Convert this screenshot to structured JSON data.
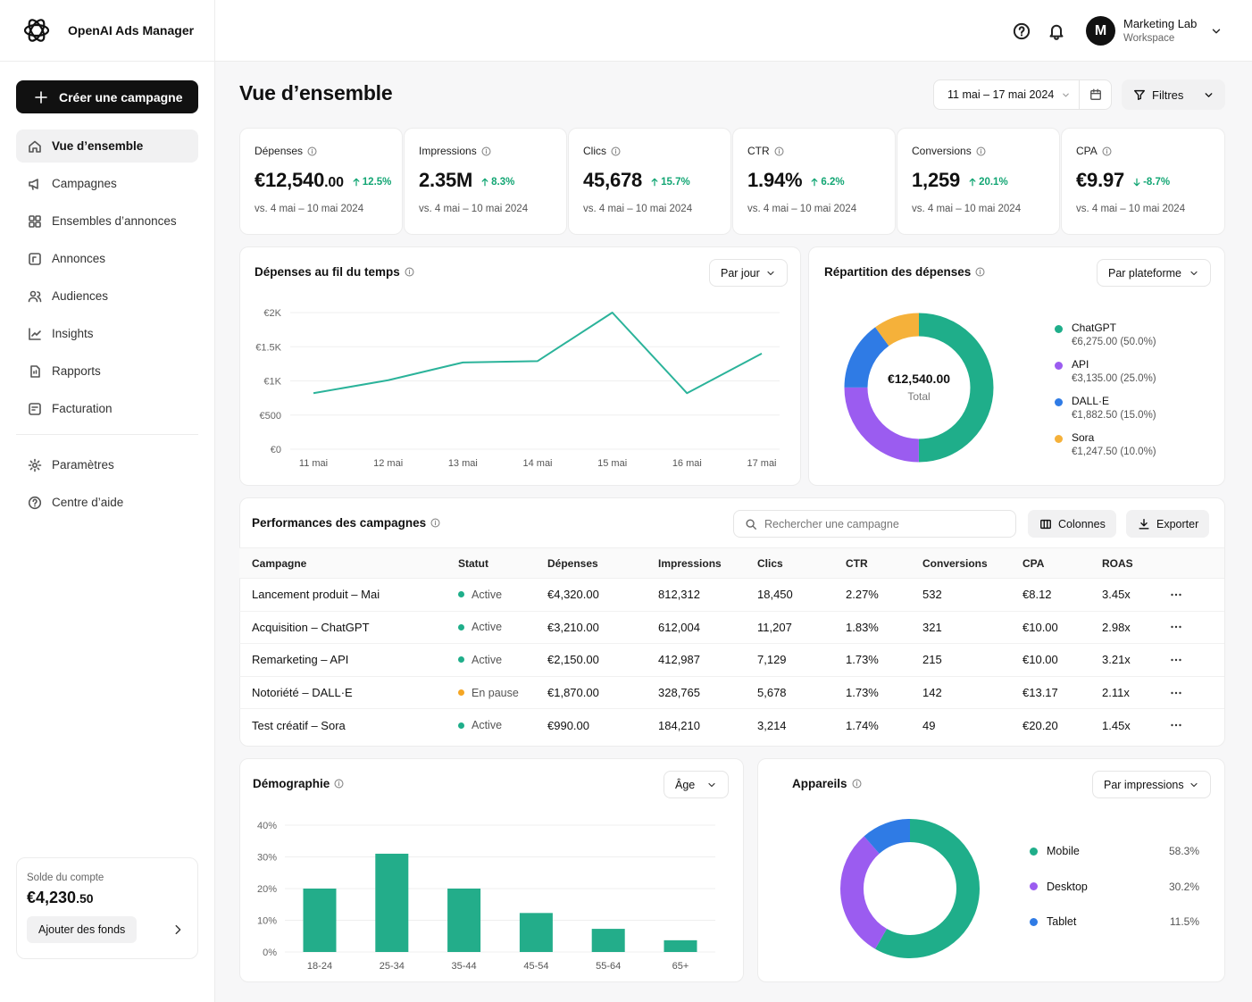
{
  "app": {
    "name": "OpenAI Ads Manager"
  },
  "sidebar": {
    "create_label": "Créer une campagne",
    "items": [
      {
        "label": "Vue d’ensemble",
        "icon": "home-icon",
        "active": true
      },
      {
        "label": "Campagnes",
        "icon": "megaphone-icon"
      },
      {
        "label": "Ensembles d’annonces",
        "icon": "grid-icon"
      },
      {
        "label": "Annonces",
        "icon": "ad-icon"
      },
      {
        "label": "Audiences",
        "icon": "users-icon"
      },
      {
        "label": "Insights",
        "icon": "insights-icon"
      },
      {
        "label": "Rapports",
        "icon": "report-icon"
      },
      {
        "label": "Facturation",
        "icon": "billing-icon"
      }
    ],
    "secondary": [
      {
        "label": "Paramètres",
        "icon": "gear-icon"
      },
      {
        "label": "Centre d’aide",
        "icon": "help-icon"
      }
    ],
    "balance": {
      "label": "Solde du compte",
      "amount": "€4,230",
      "cents": ".50",
      "fund_label": "Ajouter des fonds"
    }
  },
  "topbar": {
    "avatar_initial": "M",
    "workspace_name": "Marketing Lab",
    "workspace_type": "Workspace"
  },
  "main": {
    "title": "Vue d’ensemble",
    "date_range": "11 mai – 17 mai 2024",
    "filters_label": "Filtres"
  },
  "kpis": [
    {
      "label": "Dépenses",
      "value": "€12,540",
      "cents": ".00",
      "delta": "12.5%",
      "direction": "up",
      "compare": "vs. 4 mai – 10 mai 2024"
    },
    {
      "label": "Impressions",
      "value": "2.35M",
      "cents": "",
      "delta": "8.3%",
      "direction": "up",
      "compare": "vs. 4 mai – 10 mai 2024"
    },
    {
      "label": "Clics",
      "value": "45,678",
      "cents": "",
      "delta": "15.7%",
      "direction": "up",
      "compare": "vs. 4 mai – 10 mai 2024"
    },
    {
      "label": "CTR",
      "value": "1.94%",
      "cents": "",
      "delta": "6.2%",
      "direction": "up",
      "compare": "vs. 4 mai – 10 mai 2024"
    },
    {
      "label": "Conversions",
      "value": "1,259",
      "cents": "",
      "delta": "20.1%",
      "direction": "up",
      "compare": "vs. 4 mai – 10 mai 2024"
    },
    {
      "label": "CPA",
      "value": "€9.97",
      "cents": "",
      "delta": "-8.7%",
      "direction": "down",
      "compare": "vs. 4 mai – 10 mai 2024"
    }
  ],
  "spend_chart": {
    "title": "Dépenses au fil du temps",
    "dropdown": "Par jour"
  },
  "breakdown": {
    "title": "Répartition des dépenses",
    "dropdown": "Par plateforme",
    "center_value": "€12,540.00",
    "center_label": "Total",
    "items": [
      {
        "name": "ChatGPT",
        "detail": "€6,275.00 (50.0%)"
      },
      {
        "name": "API",
        "detail": "€3,135.00 (25.0%)"
      },
      {
        "name": "DALL·E",
        "detail": "€1,882.50 (15.0%)"
      },
      {
        "name": "Sora",
        "detail": "€1,247.50 (10.0%)"
      }
    ]
  },
  "campaigns": {
    "title": "Performances des campagnes",
    "search_placeholder": "Rechercher une campagne",
    "columns_label": "Colonnes",
    "export_label": "Exporter",
    "headers": [
      "Campagne",
      "Statut",
      "Dépenses",
      "Impressions",
      "Clics",
      "CTR",
      "Conversions",
      "CPA",
      "ROAS"
    ],
    "rows": [
      {
        "name": "Lancement produit – Mai",
        "status": "Active",
        "status_color": "#1fae8a",
        "spend": "€4,320.00",
        "impressions": "812,312",
        "clicks": "18,450",
        "ctr": "2.27%",
        "conversions": "532",
        "cpa": "€8.12",
        "roas": "3.45x"
      },
      {
        "name": "Acquisition – ChatGPT",
        "status": "Active",
        "status_color": "#1fae8a",
        "spend": "€3,210.00",
        "impressions": "612,004",
        "clicks": "11,207",
        "ctr": "1.83%",
        "conversions": "321",
        "cpa": "€10.00",
        "roas": "2.98x"
      },
      {
        "name": "Remarketing – API",
        "status": "Active",
        "status_color": "#1fae8a",
        "spend": "€2,150.00",
        "impressions": "412,987",
        "clicks": "7,129",
        "ctr": "1.73%",
        "conversions": "215",
        "cpa": "€10.00",
        "roas": "3.21x"
      },
      {
        "name": "Notoriété – DALL·E",
        "status": "En pause",
        "status_color": "#f5a623",
        "spend": "€1,870.00",
        "impressions": "328,765",
        "clicks": "5,678",
        "ctr": "1.73%",
        "conversions": "142",
        "cpa": "€13.17",
        "roas": "2.11x"
      },
      {
        "name": "Test créatif – Sora",
        "status": "Active",
        "status_color": "#1fae8a",
        "spend": "€990.00",
        "impressions": "184,210",
        "clicks": "3,214",
        "ctr": "1.74%",
        "conversions": "49",
        "cpa": "€20.20",
        "roas": "1.45x"
      }
    ]
  },
  "demographics": {
    "title": "Démographie",
    "dropdown": "Âge"
  },
  "devices": {
    "title": "Appareils",
    "dropdown": "Par impressions",
    "items": [
      {
        "name": "Mobile",
        "pct": "58.3%"
      },
      {
        "name": "Desktop",
        "pct": "30.2%"
      },
      {
        "name": "Tablet",
        "pct": "11.5%"
      }
    ]
  },
  "chart_data": [
    {
      "type": "line",
      "x": [
        "11 mai",
        "12 mai",
        "13 mai",
        "14 mai",
        "15 mai",
        "16 mai",
        "17 mai"
      ],
      "series": [
        {
          "values": [
            820,
            1010,
            1270,
            1290,
            2000,
            820,
            1400
          ]
        }
      ],
      "yticks": [
        "€0",
        "€500",
        "€1K",
        "€1.5K",
        "€2K"
      ],
      "ylim": [
        0,
        2000
      ],
      "grid": true,
      "color": "#2bb39a"
    },
    {
      "type": "pie",
      "labels": [
        "ChatGPT",
        "API",
        "DALL·E",
        "Sora"
      ],
      "values": [
        50.0,
        25.0,
        15.0,
        10.0
      ],
      "colors": [
        "#1fae8a",
        "#9b5cf0",
        "#2f7be5",
        "#f5b13a"
      ]
    },
    {
      "type": "bar",
      "categories": [
        "18-24",
        "25-34",
        "35-44",
        "45-54",
        "55-64",
        "65+"
      ],
      "values": [
        20,
        31,
        20,
        12.3,
        7.3,
        3.7
      ],
      "yticks": [
        "0%",
        "10%",
        "20%",
        "30%",
        "40%"
      ],
      "ylim": [
        0,
        40
      ],
      "grid": true,
      "color": "#23ad8a"
    },
    {
      "type": "pie",
      "labels": [
        "Mobile",
        "Desktop",
        "Tablet"
      ],
      "values": [
        58.3,
        30.2,
        11.5
      ],
      "colors": [
        "#1fae8a",
        "#9b5cf0",
        "#2f7be5"
      ]
    }
  ]
}
